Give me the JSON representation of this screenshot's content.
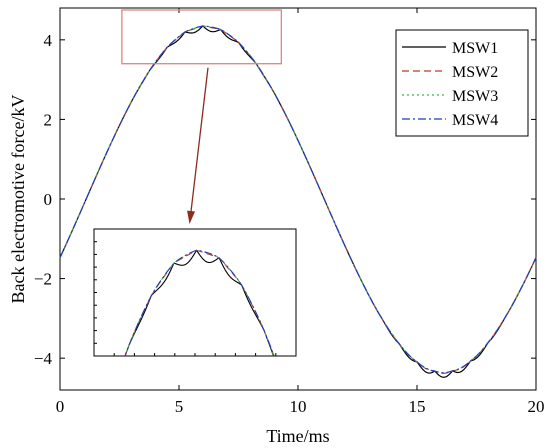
{
  "chart_data": {
    "type": "line",
    "title": "",
    "xlabel": "Time/ms",
    "ylabel": "Back electromotive force/kV",
    "xlim": [
      0,
      20
    ],
    "ylim": [
      -4.8,
      4.8
    ],
    "x_ticks": [
      0,
      5,
      10,
      15,
      20
    ],
    "y_ticks": [
      -4,
      -2,
      0,
      2,
      4
    ],
    "grid": false,
    "legend_position": "top-right",
    "amplitude_kV": 4.35,
    "period_ms": 20,
    "phase_shift_ms": -1.1,
    "series": [
      {
        "name": "MSW1",
        "color": "#000000",
        "style": "solid",
        "ripple_amplitude_kV": 0.13
      },
      {
        "name": "MSW2",
        "color": "#c0392b",
        "style": "dashed",
        "ripple_amplitude_kV": 0.03
      },
      {
        "name": "MSW3",
        "color": "#3cb44b",
        "style": "dotted",
        "ripple_amplitude_kV": 0.02
      },
      {
        "name": "MSW4",
        "color": "#1f3fbf",
        "style": "dashdot",
        "ripple_amplitude_kV": 0.015
      }
    ],
    "zoom_region": {
      "x": [
        2.6,
        9.3
      ],
      "y": [
        3.4,
        4.75
      ],
      "box_color": "#d98880",
      "arrow_color": "#8b2c1f"
    },
    "inset": {
      "xlim": [
        2.6,
        9.3
      ],
      "ylim": [
        3.1,
        4.6
      ]
    }
  }
}
